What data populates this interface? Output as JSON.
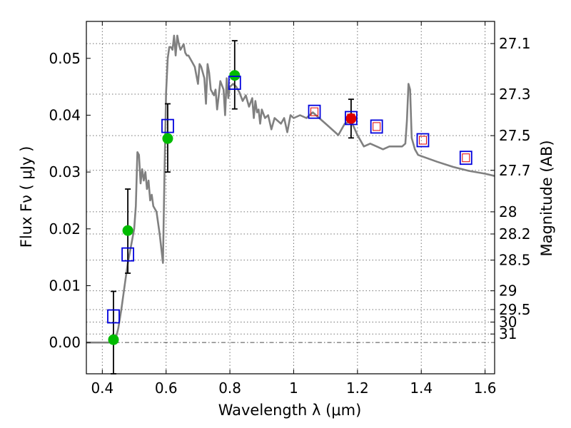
{
  "chart_data": {
    "type": "scatter",
    "xlabel": "Wavelength  λ (μm)",
    "ylabel": "Flux  Fν  ( μJy )",
    "y2label": "Magnitude (AB)",
    "xlim": [
      0.35,
      1.63
    ],
    "ylim": [
      -0.0055,
      0.0565
    ],
    "grid": true,
    "x_ticks": [
      0.4,
      0.6,
      0.8,
      1.0,
      1.2,
      1.4,
      1.6
    ],
    "x_tick_labels": [
      "0.4",
      "0.6",
      "0.8",
      "1",
      "1.2",
      "1.4",
      "1.6"
    ],
    "y_ticks": [
      0.0,
      0.01,
      0.02,
      0.03,
      0.04,
      0.05
    ],
    "y_tick_labels": [
      "0.00",
      "0.01",
      "0.02",
      "0.03",
      "0.04",
      "0.05"
    ],
    "y2_ticks": [
      {
        "label": "27.1",
        "flux": 0.0526
      },
      {
        "label": "27.3",
        "flux": 0.0437
      },
      {
        "label": "27.5",
        "flux": 0.0364
      },
      {
        "label": "27.7",
        "flux": 0.0303
      },
      {
        "label": "28",
        "flux": 0.023
      },
      {
        "label": "28.2",
        "flux": 0.0191
      },
      {
        "label": "28.5",
        "flux": 0.0145
      },
      {
        "label": "29",
        "flux": 0.0091
      },
      {
        "label": "29.5",
        "flux": 0.0058
      },
      {
        "label": "30",
        "flux": 0.0036
      },
      {
        "label": "31",
        "flux": 0.0015
      }
    ],
    "model_spectrum": {
      "color": "#808080",
      "x": [
        0.35,
        0.42,
        0.44,
        0.45,
        0.46,
        0.47,
        0.48,
        0.49,
        0.5,
        0.505,
        0.51,
        0.515,
        0.52,
        0.525,
        0.53,
        0.535,
        0.54,
        0.545,
        0.55,
        0.555,
        0.56,
        0.57,
        0.58,
        0.59,
        0.595,
        0.6,
        0.605,
        0.61,
        0.615,
        0.62,
        0.625,
        0.63,
        0.635,
        0.64,
        0.645,
        0.65,
        0.655,
        0.66,
        0.665,
        0.67,
        0.68,
        0.69,
        0.7,
        0.705,
        0.71,
        0.715,
        0.72,
        0.725,
        0.73,
        0.735,
        0.74,
        0.75,
        0.755,
        0.76,
        0.765,
        0.77,
        0.78,
        0.785,
        0.79,
        0.795,
        0.8,
        0.81,
        0.82,
        0.83,
        0.84,
        0.85,
        0.86,
        0.87,
        0.875,
        0.88,
        0.885,
        0.89,
        0.895,
        0.9,
        0.91,
        0.92,
        0.93,
        0.94,
        0.95,
        0.96,
        0.97,
        0.98,
        0.99,
        1.0,
        1.02,
        1.04,
        1.06,
        1.08,
        1.1,
        1.12,
        1.14,
        1.16,
        1.18,
        1.2,
        1.22,
        1.24,
        1.26,
        1.28,
        1.3,
        1.32,
        1.34,
        1.35,
        1.355,
        1.36,
        1.365,
        1.37,
        1.38,
        1.39,
        1.4,
        1.45,
        1.5,
        1.55,
        1.6,
        1.63
      ],
      "y": [
        0.0,
        0.0,
        0.0002,
        0.0025,
        0.006,
        0.01,
        0.014,
        0.017,
        0.02,
        0.024,
        0.0335,
        0.033,
        0.028,
        0.0305,
        0.0285,
        0.03,
        0.027,
        0.0285,
        0.025,
        0.026,
        0.024,
        0.023,
        0.019,
        0.014,
        0.03,
        0.044,
        0.05,
        0.052,
        0.052,
        0.0515,
        0.054,
        0.0505,
        0.054,
        0.0525,
        0.0515,
        0.052,
        0.0525,
        0.051,
        0.0505,
        0.0505,
        0.0495,
        0.0485,
        0.0455,
        0.049,
        0.0485,
        0.0475,
        0.0465,
        0.042,
        0.049,
        0.0475,
        0.0445,
        0.0435,
        0.0445,
        0.041,
        0.0435,
        0.046,
        0.0445,
        0.04,
        0.0465,
        0.043,
        0.045,
        0.0455,
        0.045,
        0.044,
        0.0425,
        0.0435,
        0.0415,
        0.043,
        0.0395,
        0.0425,
        0.0405,
        0.041,
        0.0385,
        0.041,
        0.0395,
        0.04,
        0.0375,
        0.0395,
        0.039,
        0.0385,
        0.0395,
        0.037,
        0.04,
        0.0395,
        0.04,
        0.0395,
        0.0405,
        0.0395,
        0.0385,
        0.0375,
        0.0365,
        0.0385,
        0.039,
        0.0365,
        0.0345,
        0.035,
        0.0345,
        0.034,
        0.0345,
        0.0345,
        0.0345,
        0.035,
        0.039,
        0.0455,
        0.0445,
        0.036,
        0.034,
        0.033,
        0.0328,
        0.0318,
        0.0309,
        0.0302,
        0.0297,
        0.0293
      ]
    },
    "measured_points": [
      {
        "x": 0.435,
        "y": 0.0005,
        "err_low": 0.006,
        "err_high": 0.0085,
        "color": "#00bb00"
      },
      {
        "x": 0.48,
        "y": 0.0197,
        "err_low": 0.0075,
        "err_high": 0.0073,
        "color": "#00bb00"
      },
      {
        "x": 0.605,
        "y": 0.0359,
        "err_low": 0.0059,
        "err_high": 0.0061,
        "color": "#00bb00"
      },
      {
        "x": 0.815,
        "y": 0.047,
        "err_low": 0.0059,
        "err_high": 0.0061,
        "color": "#00bb00"
      },
      {
        "x": 1.18,
        "y": 0.0394,
        "err_low": 0.0034,
        "err_high": 0.0034,
        "color": "#dd0000"
      }
    ],
    "model_photometry": [
      {
        "x": 0.435,
        "y": 0.0046,
        "color": "#0000dd",
        "inner": false
      },
      {
        "x": 0.48,
        "y": 0.0155,
        "color": "#0000dd",
        "inner": false
      },
      {
        "x": 0.605,
        "y": 0.0381,
        "color": "#0000dd",
        "inner": false
      },
      {
        "x": 0.815,
        "y": 0.0457,
        "color": "#0000dd",
        "inner": false
      },
      {
        "x": 1.065,
        "y": 0.0406,
        "color": "#0000dd",
        "inner": true
      },
      {
        "x": 1.18,
        "y": 0.0395,
        "color": "#0000dd",
        "inner": true
      },
      {
        "x": 1.26,
        "y": 0.038,
        "color": "#0000dd",
        "inner": true
      },
      {
        "x": 1.405,
        "y": 0.0356,
        "color": "#0000dd",
        "inner": true
      },
      {
        "x": 1.54,
        "y": 0.0325,
        "color": "#0000dd",
        "inner": true
      }
    ]
  }
}
